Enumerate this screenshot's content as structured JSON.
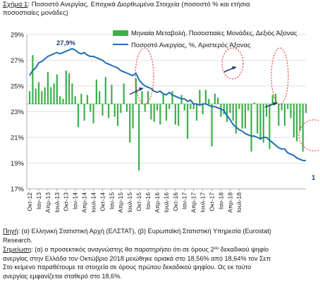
{
  "caption": {
    "label": "Σχήμα 1",
    "line1_rest": ": Ποσοστό Ανεργίας, Εποχικά Διορθωμένα Στοιχεία (ποσοστό % και ετήσια",
    "line2": "ποσοστιαίες μονάδες)"
  },
  "chart_data": {
    "type": "bar+line",
    "y_ticks": [
      "29%",
      "27%",
      "25%",
      "23%",
      "21%",
      "19%",
      "17%"
    ],
    "ylim": [
      17,
      29
    ],
    "bar_baseline": 23.6,
    "x_ticks": [
      "Οκτ-12",
      "Ιαν-13",
      "Απρ-13",
      "Ιουλ-13",
      "Οκτ-13",
      "Ιαν-14",
      "Απρ-14",
      "Ιουλ-14",
      "Οκτ-14",
      "Ιαν-15",
      "Απρ-15",
      "Ιουλ-15",
      "Οκτ-15",
      "Ιαν-16",
      "Απρ-16",
      "Ιουλ-16",
      "Οκτ-16",
      "Ιαν-17",
      "Απρ-17",
      "Ιουλ-17",
      "Οκτ-17",
      "Ιαν-18",
      "Απρ-18",
      "Ιουλ-18"
    ],
    "legend": {
      "bars": "Μηνιαία Μεταβολή, Ποσοστιαίες Μονάδες, Δεξιός Άξονας",
      "line": "Ποσοστό Ανεργίας, %, Αριστερός Άξονας"
    },
    "annotations": {
      "peak": "27,9%",
      "end": "1"
    },
    "series": [
      {
        "name": "Ποσοστό Ανεργίας, %, Αριστερός Άξονας",
        "kind": "line",
        "values": [
          25.8,
          26.2,
          26.4,
          26.8,
          26.9,
          27.1,
          27.3,
          27.4,
          27.5,
          27.6,
          27.5,
          27.6,
          27.7,
          27.8,
          27.9,
          27.8,
          27.6,
          27.5,
          27.6,
          27.4,
          27.3,
          27.3,
          27.2,
          27.1,
          27.0,
          26.8,
          26.7,
          26.6,
          26.5,
          26.4,
          26.2,
          26.1,
          26.0,
          25.9,
          25.8,
          26.0,
          25.5,
          25.2,
          25.0,
          24.9,
          24.8,
          24.6,
          24.5,
          24.6,
          24.4,
          24.3,
          24.5,
          24.3,
          24.2,
          24.1,
          24.0,
          24.0,
          23.8,
          23.9,
          23.6,
          23.6,
          23.5,
          23.6,
          23.6,
          23.5,
          23.4,
          23.4,
          23.3,
          23.2,
          23.1,
          22.7,
          22.4,
          22.0,
          21.8,
          21.6,
          21.5,
          21.3,
          21.2,
          21.1,
          21.1,
          21.0,
          20.9,
          21.0,
          21.0,
          20.8,
          20.6,
          20.4,
          20.2,
          20.1,
          20.1,
          19.8,
          19.7,
          19.6,
          19.4,
          19.3,
          19.2,
          19.2
        ]
      },
      {
        "name": "Μηνιαία Μεταβολή, Ποσοστιαίες Μονάδες, Δεξιός Άξονας",
        "kind": "bar",
        "values": [
          24.6,
          27.4,
          24.8,
          25.3,
          24.6,
          24.9,
          26.1,
          24.9,
          25.2,
          25.9,
          24.2,
          24.0,
          26.2,
          26.0,
          25.2,
          24.2,
          21.8,
          24.4,
          22.3,
          24.3,
          23.0,
          22.1,
          25.5,
          24.6,
          22.7,
          25.7,
          22.5,
          25.1,
          22.6,
          21.9,
          22.9,
          25.2,
          23.0,
          20.6,
          21.7,
          25.6,
          18.4,
          24.6,
          23.0,
          24.6,
          22.4,
          22.2,
          23.1,
          22.0,
          24.4,
          22.3,
          23.2,
          24.6,
          22.0,
          21.9,
          24.3,
          23.1,
          20.9,
          23.2,
          23.2,
          22.3,
          24.7,
          22.8,
          24.7,
          24.0,
          20.3,
          24.4,
          24.1,
          22.6,
          22.8,
          22.2,
          22.9,
          22.3,
          21.3,
          23.2,
          21.7,
          21.7,
          23.1,
          19.9,
          23.7,
          21.3,
          20.8,
          20.6,
          22.6,
          20.1,
          24.3,
          24.4,
          21.9,
          23.1,
          21.9,
          23.2,
          22.5,
          21.0,
          20.7,
          21.5,
          19.9,
          22.9
        ]
      }
    ]
  },
  "notes": {
    "source_label": "Πηγή",
    "source_text": ": (α) Ελληνική Στατιστική Αρχή (ΕΛΣΤΑΤ), (β) Ευρωπαϊκή Στατιστική Υπηρεσία (Eurostat)",
    "source_text_2": "Research.",
    "note_label": "Σημείωση",
    "note_line1_a": ": (α) ο προσεκτικός αναγνώστης θα παρατηρήσει ότι σε όρους 2",
    "note_sup": "ου",
    "note_line1_b": " δεκαδικού ψηφίο",
    "note_line2": "ανεργίας στην Ελλάδα τον Οκτώβριο 2018 μειώθηκε οριακά στο 18,56% από 18,64% τον Σεπ",
    "note_line3": "Στο κείμενο παραθέτουμε τα στοιχεία σε όρους πρώτου δεκαδικού ψηφίου. Ως εκ τούτο",
    "note_line4": "ανεργίας εμφανίζεται σταθερό στο 18,6%."
  },
  "colors": {
    "bars": "#3cb04a",
    "line": "#1f6fb5",
    "grid": "#d8d8d8",
    "annotation_red": "#e0231f",
    "arrow": "#1f3b6e"
  }
}
